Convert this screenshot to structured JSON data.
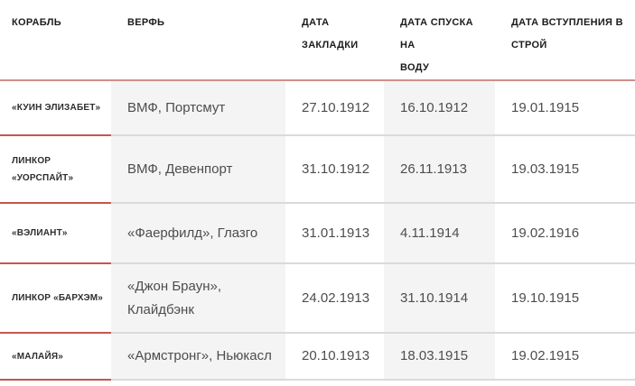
{
  "table": {
    "columns": [
      {
        "key": "ship",
        "label": "КОРАБЛЬ"
      },
      {
        "key": "shipyard",
        "label": "ВЕРФЬ"
      },
      {
        "key": "laid_down",
        "label": "ДАТА\nЗАКЛАДКИ"
      },
      {
        "key": "launched",
        "label": "ДАТА СПУСКА НА\nВОДУ"
      },
      {
        "key": "commissioned",
        "label": "ДАТА ВСТУПЛЕНИЯ В\nСТРОЙ"
      }
    ],
    "rows": [
      {
        "ship": "«КУИН ЭЛИЗАБЕТ»",
        "shipyard": "ВМФ, Портсмут",
        "laid_down": "27.10.1912",
        "launched": "16.10.1912",
        "commissioned": "19.01.1915"
      },
      {
        "ship": "ЛИНКОР\n«УОРСПАЙТ»",
        "shipyard": "ВМФ, Девенпорт",
        "laid_down": "31.10.1912",
        "launched": "26.11.1913",
        "commissioned": "19.03.1915"
      },
      {
        "ship": "«ВЭЛИАНТ»",
        "shipyard": "«Фаерфилд», Глазго",
        "laid_down": "31.01.1913",
        "launched": "4.11.1914",
        "commissioned": "19.02.1916"
      },
      {
        "ship": "ЛИНКОР «БАРХЭМ»",
        "shipyard": "«Джон Браун»,\nКлайдбэнк",
        "laid_down": "24.02.1913",
        "launched": "31.10.1914",
        "commissioned": "19.10.1915"
      },
      {
        "ship": "«МАЛАЙЯ»",
        "shipyard": "«Армстронг», Ньюкасл",
        "laid_down": "20.10.1913",
        "launched": "18.03.1915",
        "commissioned": "19.02.1915"
      }
    ]
  },
  "colors": {
    "header_rule": "#d0908b",
    "row_rule_ship_column": "#c4574e",
    "row_rule_other": "#dadada",
    "band_background": "#f4f4f4",
    "header_text": "#1c1c1c",
    "body_text": "#4d4d51"
  }
}
